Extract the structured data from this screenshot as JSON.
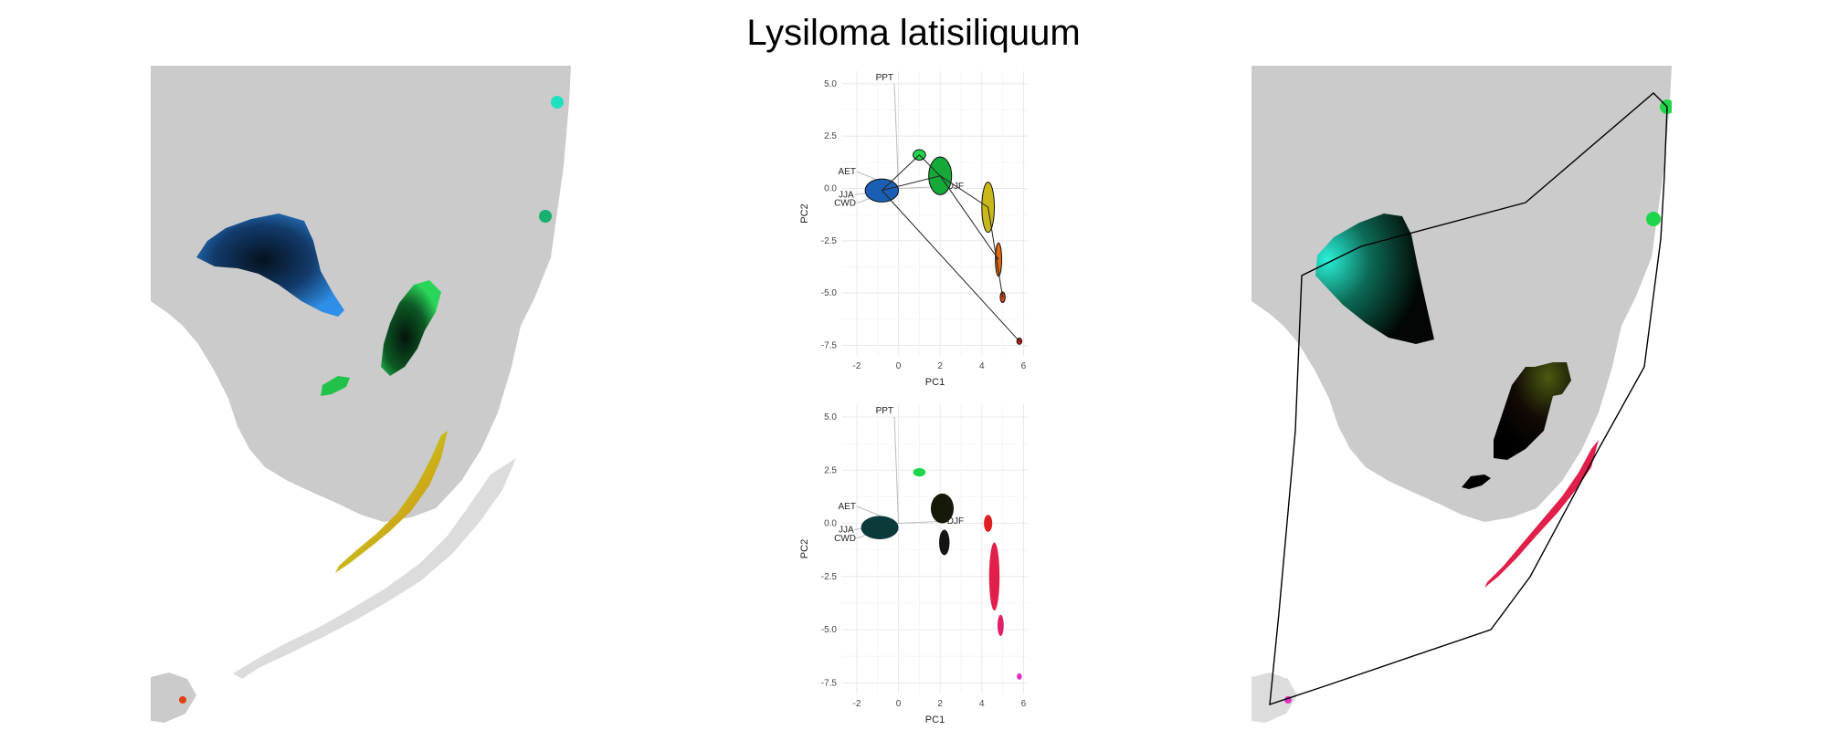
{
  "title": "Lysiloma latisiliquum",
  "colors": {
    "land": "#cbcbcb",
    "blue": "#2f7fdc",
    "green": "#1fd64a",
    "teal": "#1fe0c0",
    "orange": "#e06a10",
    "red": "#e0204a",
    "magenta": "#e030c0"
  },
  "chart_data": [
    {
      "type": "scatter",
      "name": "pca-top",
      "xlabel": "PC1",
      "ylabel": "PC2",
      "xlim": [
        -2.7,
        6.2
      ],
      "ylim": [
        -8.0,
        5.6
      ],
      "x_ticks": [
        "-2",
        "0",
        "2",
        "4",
        "6"
      ],
      "x_tick_values": [
        -2,
        0,
        2,
        4,
        6
      ],
      "y_ticks": [
        "5.0",
        "2.5",
        "0.0",
        "-2.5",
        "-5.0",
        "-7.5"
      ],
      "y_tick_values": [
        5.0,
        2.5,
        0.0,
        -2.5,
        -5.0,
        -7.5
      ],
      "grid": true,
      "loadings": [
        {
          "label": "PPT",
          "x": -0.2,
          "y": 5.0
        },
        {
          "label": "AET",
          "x": -2.0,
          "y": 0.8
        },
        {
          "label": "JJA",
          "x": -2.1,
          "y": -0.3
        },
        {
          "label": "CWD",
          "x": -2.0,
          "y": -0.7
        },
        {
          "label": "DJF",
          "x": 2.2,
          "y": 0.1
        }
      ],
      "clusters": [
        {
          "cx": -0.8,
          "cy": -0.1,
          "rx": 0.8,
          "ry": 0.55,
          "color": "#1a5fb4"
        },
        {
          "cx": 1.0,
          "cy": 1.6,
          "rx": 0.3,
          "ry": 0.25,
          "color": "#1fd64a"
        },
        {
          "cx": 2.0,
          "cy": 0.6,
          "rx": 0.55,
          "ry": 0.9,
          "color": "#16a838"
        },
        {
          "cx": 4.3,
          "cy": -0.9,
          "rx": 0.3,
          "ry": 1.2,
          "color": "#c9b81a"
        },
        {
          "cx": 4.8,
          "cy": -3.4,
          "rx": 0.15,
          "ry": 0.8,
          "color": "#e06a10"
        },
        {
          "cx": 5.0,
          "cy": -5.2,
          "rx": 0.12,
          "ry": 0.25,
          "color": "#d04010"
        },
        {
          "cx": 5.8,
          "cy": -7.3,
          "rx": 0.12,
          "ry": 0.15,
          "color": "#c02010"
        }
      ]
    },
    {
      "type": "scatter",
      "name": "pca-bottom",
      "xlabel": "PC1",
      "ylabel": "PC2",
      "xlim": [
        -2.7,
        6.2
      ],
      "ylim": [
        -8.0,
        5.6
      ],
      "x_ticks": [
        "-2",
        "0",
        "2",
        "4",
        "6"
      ],
      "x_tick_values": [
        -2,
        0,
        2,
        4,
        6
      ],
      "y_ticks": [
        "5.0",
        "2.5",
        "0.0",
        "-2.5",
        "-5.0",
        "-7.5"
      ],
      "y_tick_values": [
        5.0,
        2.5,
        0.0,
        -2.5,
        -5.0,
        -7.5
      ],
      "grid": true,
      "loadings": [
        {
          "label": "PPT",
          "x": -0.2,
          "y": 5.0
        },
        {
          "label": "AET",
          "x": -2.0,
          "y": 0.8
        },
        {
          "label": "JJA",
          "x": -2.1,
          "y": -0.3
        },
        {
          "label": "CWD",
          "x": -2.0,
          "y": -0.7
        },
        {
          "label": "DJF",
          "x": 2.2,
          "y": 0.1
        }
      ],
      "clusters": [
        {
          "cx": -0.9,
          "cy": -0.2,
          "rx": 0.9,
          "ry": 0.55,
          "color": "#0a3a3a"
        },
        {
          "cx": 1.0,
          "cy": 2.4,
          "rx": 0.3,
          "ry": 0.2,
          "color": "#1fd64a"
        },
        {
          "cx": 2.1,
          "cy": 0.7,
          "rx": 0.55,
          "ry": 0.7,
          "color": "#141a08"
        },
        {
          "cx": 2.2,
          "cy": -0.9,
          "rx": 0.25,
          "ry": 0.6,
          "color": "#141414"
        },
        {
          "cx": 4.3,
          "cy": 0.0,
          "rx": 0.2,
          "ry": 0.4,
          "color": "#e02020"
        },
        {
          "cx": 4.6,
          "cy": -2.5,
          "rx": 0.25,
          "ry": 1.6,
          "color": "#e0204a"
        },
        {
          "cx": 4.9,
          "cy": -4.8,
          "rx": 0.15,
          "ry": 0.5,
          "color": "#e0206a"
        },
        {
          "cx": 5.8,
          "cy": -7.2,
          "rx": 0.12,
          "ry": 0.15,
          "color": "#e030c0"
        }
      ]
    }
  ]
}
